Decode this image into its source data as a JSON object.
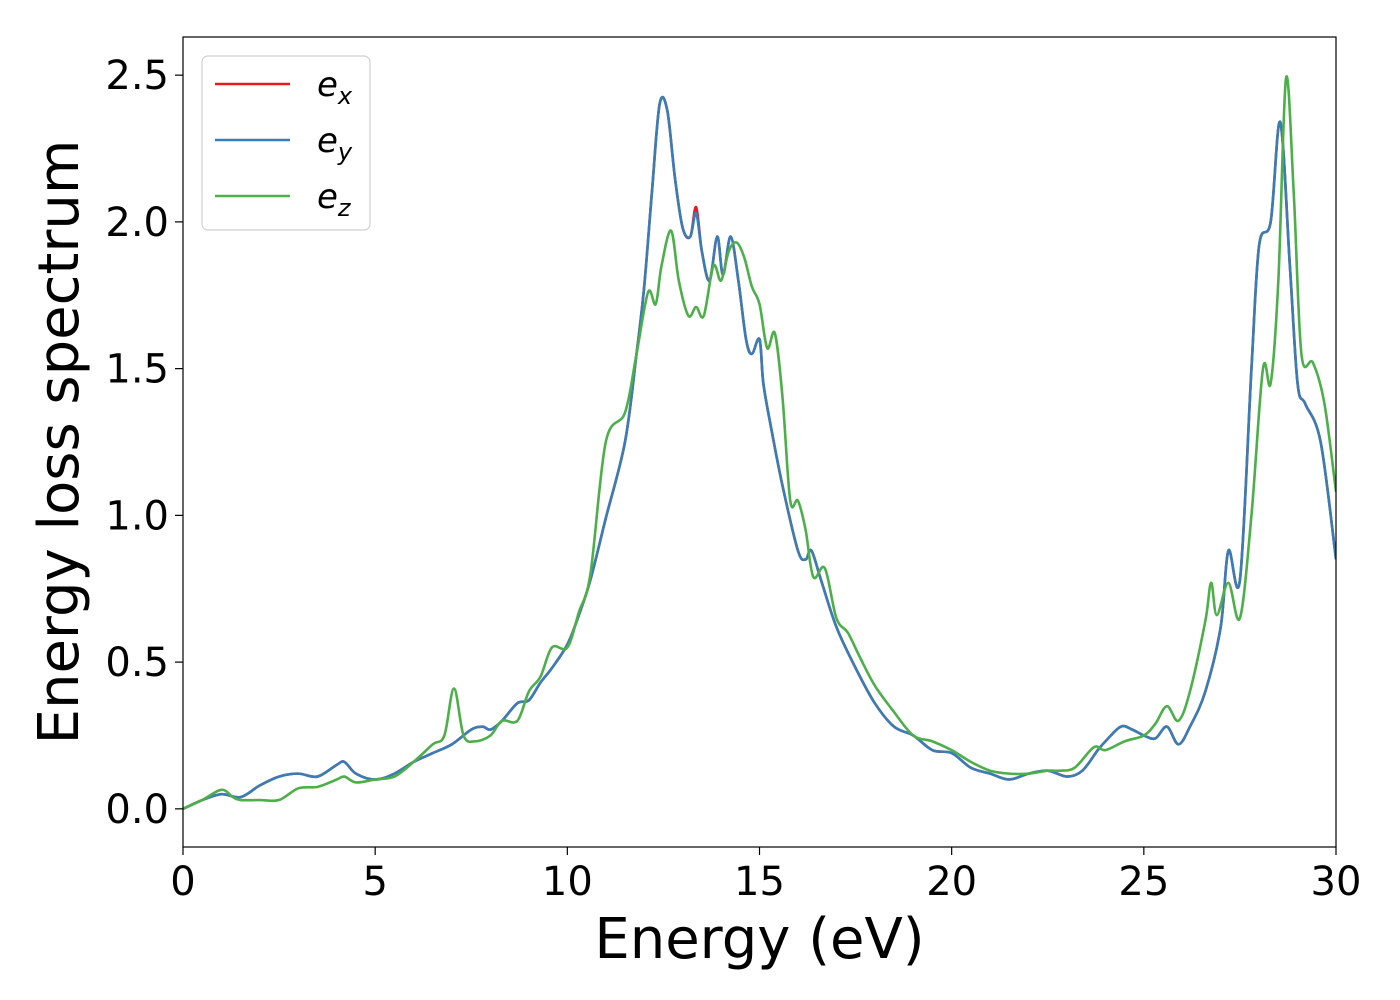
{
  "chart_data": {
    "type": "line",
    "title": "",
    "xlabel": "Energy (eV)",
    "ylabel": "Energy loss spectrum",
    "xlim": [
      0,
      30
    ],
    "ylim": [
      -0.13,
      2.63
    ],
    "xticks": [
      0,
      5,
      10,
      15,
      20,
      25,
      30
    ],
    "yticks": [
      0.0,
      0.5,
      1.0,
      1.5,
      2.0,
      2.5
    ],
    "xtick_labels": [
      "0",
      "5",
      "10",
      "15",
      "20",
      "25",
      "30"
    ],
    "ytick_labels": [
      "0.0",
      "0.5",
      "1.0",
      "1.5",
      "2.0",
      "2.5"
    ],
    "grid": false,
    "legend": "top-left",
    "series": [
      {
        "name": "e_x",
        "label_main": "e",
        "label_sub": "x",
        "color": "#e41a1c",
        "x": [
          0,
          0.5,
          1,
          1.5,
          2,
          2.5,
          3,
          3.5,
          4,
          4.2,
          4.5,
          5,
          5.5,
          6,
          6.5,
          7,
          7.5,
          7.8,
          8,
          8.3,
          8.7,
          9,
          9.3,
          9.6,
          10,
          10.3,
          10.6,
          11,
          11.5,
          11.8,
          12,
          12.2,
          12.4,
          12.6,
          12.8,
          13,
          13.2,
          13.35,
          13.5,
          13.7,
          13.9,
          14.05,
          14.25,
          14.45,
          14.65,
          14.8,
          15,
          15.1,
          15.3,
          15.6,
          16,
          16.2,
          16.35,
          16.6,
          17,
          17.5,
          18,
          18.5,
          19,
          19.5,
          20,
          20.5,
          21,
          21.5,
          22,
          22.5,
          23,
          23.4,
          23.8,
          24,
          24.4,
          24.7,
          25,
          25.3,
          25.6,
          25.9,
          26.2,
          26.6,
          27,
          27.2,
          27.5,
          27.8,
          28,
          28.3,
          28.55,
          28.8,
          29,
          29.2,
          29.6,
          30
        ],
        "y": [
          0.0,
          0.03,
          0.05,
          0.04,
          0.08,
          0.11,
          0.12,
          0.11,
          0.15,
          0.16,
          0.12,
          0.1,
          0.12,
          0.16,
          0.19,
          0.22,
          0.27,
          0.28,
          0.27,
          0.3,
          0.36,
          0.37,
          0.43,
          0.48,
          0.56,
          0.66,
          0.78,
          0.99,
          1.25,
          1.55,
          1.78,
          2.1,
          2.4,
          2.38,
          2.15,
          1.98,
          1.95,
          2.05,
          1.9,
          1.8,
          1.95,
          1.82,
          1.95,
          1.8,
          1.6,
          1.55,
          1.6,
          1.45,
          1.3,
          1.1,
          0.88,
          0.85,
          0.88,
          0.78,
          0.62,
          0.48,
          0.36,
          0.28,
          0.25,
          0.2,
          0.19,
          0.14,
          0.12,
          0.1,
          0.12,
          0.13,
          0.11,
          0.13,
          0.2,
          0.23,
          0.28,
          0.27,
          0.25,
          0.24,
          0.28,
          0.22,
          0.28,
          0.4,
          0.62,
          0.88,
          0.78,
          1.5,
          1.92,
          2.0,
          2.34,
          1.85,
          1.45,
          1.38,
          1.25,
          0.85
        ]
      },
      {
        "name": "e_y",
        "label_main": "e",
        "label_sub": "y",
        "color": "#377eb8",
        "x": [
          0,
          0.5,
          1,
          1.5,
          2,
          2.5,
          3,
          3.5,
          4,
          4.2,
          4.5,
          5,
          5.5,
          6,
          6.5,
          7,
          7.5,
          7.8,
          8,
          8.3,
          8.7,
          9,
          9.3,
          9.6,
          10,
          10.3,
          10.6,
          11,
          11.5,
          11.8,
          12,
          12.2,
          12.4,
          12.6,
          12.8,
          13,
          13.2,
          13.35,
          13.5,
          13.7,
          13.9,
          14.05,
          14.25,
          14.45,
          14.65,
          14.8,
          15,
          15.1,
          15.3,
          15.6,
          16,
          16.2,
          16.35,
          16.6,
          17,
          17.5,
          18,
          18.5,
          19,
          19.5,
          20,
          20.5,
          21,
          21.5,
          22,
          22.5,
          23,
          23.4,
          23.8,
          24,
          24.4,
          24.7,
          25,
          25.3,
          25.6,
          25.9,
          26.2,
          26.6,
          27,
          27.2,
          27.5,
          27.8,
          28,
          28.3,
          28.55,
          28.8,
          29,
          29.2,
          29.6,
          30
        ],
        "y": [
          0.0,
          0.03,
          0.05,
          0.04,
          0.08,
          0.11,
          0.12,
          0.11,
          0.15,
          0.16,
          0.12,
          0.1,
          0.12,
          0.16,
          0.19,
          0.22,
          0.27,
          0.28,
          0.27,
          0.3,
          0.36,
          0.37,
          0.43,
          0.48,
          0.56,
          0.66,
          0.78,
          0.99,
          1.25,
          1.55,
          1.78,
          2.1,
          2.4,
          2.38,
          2.15,
          1.98,
          1.95,
          2.03,
          1.9,
          1.8,
          1.95,
          1.82,
          1.95,
          1.8,
          1.6,
          1.55,
          1.6,
          1.45,
          1.3,
          1.1,
          0.88,
          0.85,
          0.88,
          0.78,
          0.62,
          0.48,
          0.36,
          0.28,
          0.25,
          0.2,
          0.19,
          0.14,
          0.12,
          0.1,
          0.12,
          0.13,
          0.11,
          0.13,
          0.2,
          0.23,
          0.28,
          0.27,
          0.25,
          0.24,
          0.28,
          0.22,
          0.28,
          0.4,
          0.62,
          0.88,
          0.78,
          1.5,
          1.92,
          2.0,
          2.34,
          1.85,
          1.45,
          1.38,
          1.25,
          0.85
        ]
      },
      {
        "name": "e_z",
        "label_main": "e",
        "label_sub": "z",
        "color": "#4daf4a",
        "x": [
          0,
          0.5,
          1,
          1.3,
          1.5,
          2,
          2.5,
          3,
          3.5,
          4,
          4.2,
          4.5,
          5,
          5.5,
          6,
          6.5,
          6.8,
          7.05,
          7.3,
          7.6,
          8,
          8.3,
          8.7,
          9,
          9.3,
          9.6,
          10,
          10.3,
          10.6,
          11,
          11.5,
          11.8,
          12.1,
          12.3,
          12.45,
          12.7,
          12.9,
          13.15,
          13.35,
          13.55,
          13.8,
          14.0,
          14.2,
          14.4,
          14.6,
          14.8,
          15.0,
          15.2,
          15.4,
          15.6,
          15.8,
          16.0,
          16.2,
          16.4,
          16.7,
          17.0,
          17.3,
          17.6,
          18,
          18.5,
          19,
          19.5,
          20,
          20.5,
          21,
          21.5,
          22,
          22.5,
          22.8,
          23.2,
          23.7,
          24,
          24.5,
          25,
          25.3,
          25.6,
          25.9,
          26.2,
          26.6,
          26.75,
          26.9,
          27.2,
          27.5,
          27.8,
          28.1,
          28.3,
          28.5,
          28.7,
          28.9,
          29.1,
          29.4,
          29.7,
          30
        ],
        "y": [
          0.0,
          0.03,
          0.065,
          0.04,
          0.03,
          0.03,
          0.03,
          0.07,
          0.075,
          0.1,
          0.11,
          0.09,
          0.1,
          0.11,
          0.16,
          0.22,
          0.25,
          0.41,
          0.25,
          0.23,
          0.25,
          0.3,
          0.3,
          0.4,
          0.45,
          0.55,
          0.55,
          0.67,
          0.8,
          1.25,
          1.35,
          1.55,
          1.76,
          1.72,
          1.85,
          1.97,
          1.8,
          1.68,
          1.71,
          1.68,
          1.85,
          1.8,
          1.9,
          1.93,
          1.88,
          1.78,
          1.72,
          1.57,
          1.62,
          1.4,
          1.05,
          1.05,
          0.95,
          0.79,
          0.82,
          0.65,
          0.6,
          0.52,
          0.42,
          0.33,
          0.25,
          0.23,
          0.2,
          0.16,
          0.13,
          0.12,
          0.12,
          0.13,
          0.13,
          0.14,
          0.21,
          0.2,
          0.23,
          0.25,
          0.29,
          0.35,
          0.3,
          0.4,
          0.64,
          0.77,
          0.66,
          0.77,
          0.65,
          1.0,
          1.5,
          1.45,
          1.8,
          2.49,
          2.1,
          1.55,
          1.52,
          1.38,
          1.08
        ]
      }
    ]
  }
}
